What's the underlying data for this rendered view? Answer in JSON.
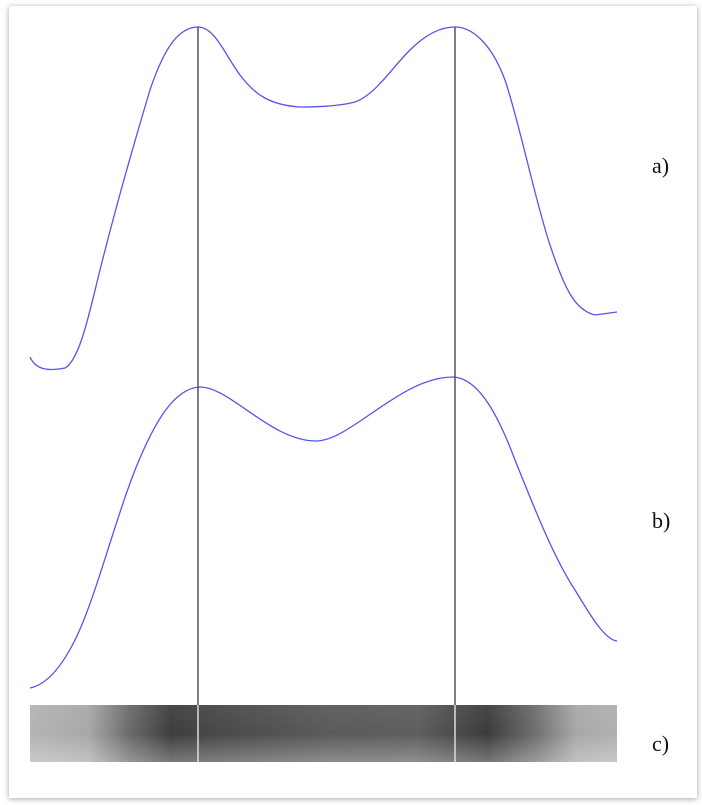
{
  "labels": {
    "a": "a)",
    "b": "b)",
    "c": "c)"
  }
}
